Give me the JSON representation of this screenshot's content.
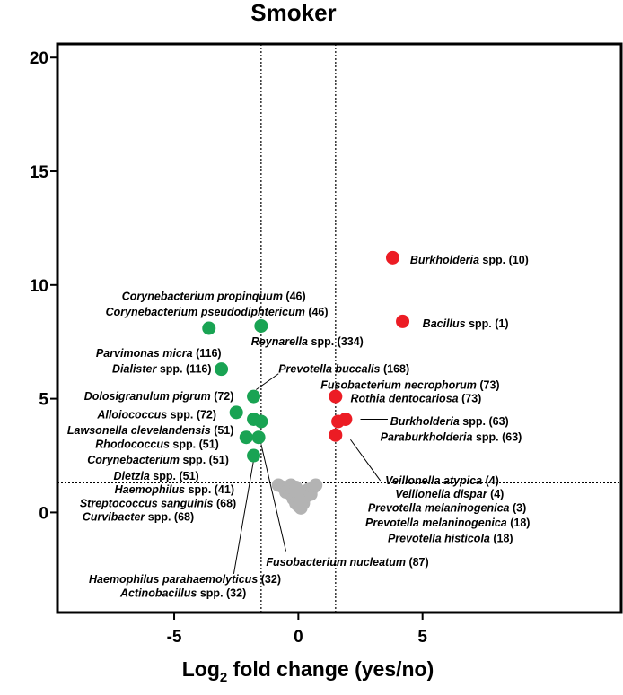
{
  "chart_data": {
    "type": "scatter",
    "title": "Smoker",
    "xlabel_prefix": "Log",
    "xlabel_sub": "2",
    "xlabel_rest": " fold change (yes/no)",
    "ylabel": "",
    "xlim": [
      -9.7,
      13.0
    ],
    "ylim": [
      -4.4,
      20.6
    ],
    "xticks": [
      -5,
      0,
      5
    ],
    "xtick_labels": [
      "-5",
      "0",
      "5"
    ],
    "yticks": [
      0,
      5,
      10,
      15,
      20
    ],
    "ytick_labels": [
      "0",
      "5",
      "10",
      "15",
      "20"
    ],
    "grid": false,
    "legend": "none",
    "thresholds": {
      "x": [
        -1.5,
        1.5
      ],
      "y": 1.3
    },
    "colors": {
      "enriched": "#ec1c24",
      "depleted": "#19a353",
      "ns": "#b3b3b3"
    },
    "series": [
      {
        "group": "enriched",
        "points": [
          {
            "x": 3.8,
            "y": 11.2,
            "label": "Burkholderia spp. (10)"
          },
          {
            "x": 4.2,
            "y": 8.4,
            "label": "Bacillus spp. (1)"
          },
          {
            "x": 1.5,
            "y": 5.1,
            "label": "Fusobacterium necrophorum (73)"
          },
          {
            "x": 1.6,
            "y": 4.0,
            "label": "Rothia dentocariosa (73)"
          },
          {
            "x": 1.9,
            "y": 4.1,
            "label": "Burkholderia spp. (63)"
          },
          {
            "x": 1.5,
            "y": 3.4,
            "label": "Paraburkholderia spp. (63)"
          }
        ]
      },
      {
        "group": "depleted",
        "points": [
          {
            "x": -3.6,
            "y": 8.1,
            "label": "Corynebacterium propinquum (46)"
          },
          {
            "x": -1.5,
            "y": 8.2,
            "label": "Reynarella spp. (334)"
          },
          {
            "x": -3.1,
            "y": 6.3,
            "label": "Dialister spp. (116)"
          },
          {
            "x": -1.8,
            "y": 5.1,
            "label": "Prevotella buccalis (168)"
          },
          {
            "x": -2.5,
            "y": 4.4,
            "label": "Alloiococcus spp. (72)"
          },
          {
            "x": -1.8,
            "y": 4.1,
            "label": "Dolosigranulum pigrum (72)"
          },
          {
            "x": -1.5,
            "y": 4.0,
            "label": "Lawsonella clevelandensis (51)"
          },
          {
            "x": -2.1,
            "y": 3.3,
            "label": "Rhodococcus spp. (51)"
          },
          {
            "x": -1.6,
            "y": 3.3,
            "label": "Fusobacterium nucleatum (87)"
          },
          {
            "x": -1.8,
            "y": 2.5,
            "label": "Haemophilus parahaemolyticus (32)"
          }
        ]
      },
      {
        "group": "ns",
        "points": [
          {
            "x": -0.8,
            "y": 1.2
          },
          {
            "x": -0.6,
            "y": 1.1
          },
          {
            "x": -0.5,
            "y": 0.9
          },
          {
            "x": -0.4,
            "y": 1.0
          },
          {
            "x": -0.3,
            "y": 0.8
          },
          {
            "x": -0.3,
            "y": 1.2
          },
          {
            "x": -0.2,
            "y": 0.6
          },
          {
            "x": -0.1,
            "y": 0.4
          },
          {
            "x": 0.0,
            "y": 0.3
          },
          {
            "x": 0.0,
            "y": 0.8
          },
          {
            "x": 0.1,
            "y": 0.5
          },
          {
            "x": 0.2,
            "y": 0.4
          },
          {
            "x": 0.2,
            "y": 0.9
          },
          {
            "x": 0.3,
            "y": 0.7
          },
          {
            "x": 0.4,
            "y": 1.0
          },
          {
            "x": 0.5,
            "y": 0.8
          },
          {
            "x": 0.6,
            "y": 1.1
          },
          {
            "x": 0.7,
            "y": 1.2
          },
          {
            "x": -0.1,
            "y": 1.1
          },
          {
            "x": 0.1,
            "y": 0.2
          }
        ]
      }
    ],
    "annotations": [
      {
        "italic": "Burkholderia",
        "rest": " spp. (10)",
        "tx": 4.5,
        "ty": 11.1,
        "anchor": "start"
      },
      {
        "italic": "Bacillus",
        "rest": " spp. (1)",
        "tx": 5.0,
        "ty": 8.3,
        "anchor": "start"
      },
      {
        "italic": "Fusobacterium necrophorum",
        "rest": " (73)",
        "tx": 0.9,
        "ty": 5.6,
        "anchor": "start"
      },
      {
        "italic": "Rothia dentocariosa",
        "rest": " (73)",
        "tx": 2.1,
        "ty": 5.0,
        "anchor": "start"
      },
      {
        "italic": "Burkholderia",
        "rest": " spp. (63)",
        "tx": 3.7,
        "ty": 4.0,
        "anchor": "start"
      },
      {
        "italic": "Paraburkholderia",
        "rest": " spp. (63)",
        "tx": 3.3,
        "ty": 3.3,
        "anchor": "start"
      },
      {
        "italic": "Veillonella atypica",
        "rest": " (4)",
        "tx": 3.5,
        "ty": 1.4,
        "anchor": "start"
      },
      {
        "italic": "Veillonella dispar",
        "rest": " (4)",
        "tx": 3.9,
        "ty": 0.8,
        "anchor": "start"
      },
      {
        "italic": "Prevotella melaninogenica",
        "rest": " (3)",
        "tx": 2.8,
        "ty": 0.2,
        "anchor": "start"
      },
      {
        "italic": "Prevotella melaninogenica",
        "rest": " (18)",
        "tx": 2.7,
        "ty": -0.45,
        "anchor": "start"
      },
      {
        "italic": "Prevotella histicola",
        "rest": " (18)",
        "tx": 3.6,
        "ty": -1.15,
        "anchor": "start"
      },
      {
        "italic": "Corynebacterium propinquum",
        "rest": " (46)",
        "tx": 0.3,
        "ty": 9.5,
        "anchor": "end"
      },
      {
        "italic": "Corynebacterium pseudodiphtericum",
        "rest": " (46)",
        "tx": 1.2,
        "ty": 8.8,
        "anchor": "end"
      },
      {
        "italic": "Reynarella",
        "rest": " spp. (334)",
        "tx": -1.9,
        "ty": 7.5,
        "anchor": "start"
      },
      {
        "italic": "Parvimonas micra",
        "rest": " (116)",
        "tx": -3.1,
        "ty": 7.0,
        "anchor": "end"
      },
      {
        "italic": "Dialister",
        "rest": " spp. (116)",
        "tx": -3.5,
        "ty": 6.3,
        "anchor": "end"
      },
      {
        "italic": "Prevotella buccalis",
        "rest": " (168)",
        "tx": -0.8,
        "ty": 6.3,
        "anchor": "start"
      },
      {
        "italic": "Dolosigranulum pigrum",
        "rest": " (72)",
        "tx": -2.6,
        "ty": 5.1,
        "anchor": "end"
      },
      {
        "italic": "Alloiococcus",
        "rest": " spp. (72)",
        "tx": -3.3,
        "ty": 4.3,
        "anchor": "end"
      },
      {
        "italic": "Lawsonella clevelandensis",
        "rest": " (51)",
        "tx": -2.6,
        "ty": 3.6,
        "anchor": "end"
      },
      {
        "italic": "Rhodococcus",
        "rest": " spp. (51)",
        "tx": -3.2,
        "ty": 3.0,
        "anchor": "end"
      },
      {
        "italic": "Corynebacterium",
        "rest": " spp. (51)",
        "tx": -2.8,
        "ty": 2.3,
        "anchor": "end"
      },
      {
        "italic": "Dietzia",
        "rest": " spp. (51)",
        "tx": -4.0,
        "ty": 1.6,
        "anchor": "end"
      },
      {
        "italic": "Haemophilus",
        "rest": " spp. (41)",
        "tx": -7.4,
        "ty": 1.0,
        "anchor": "start"
      },
      {
        "italic": "Streptococcus sanguinis",
        "rest": " (68)",
        "tx": -2.5,
        "ty": 0.4,
        "anchor": "end"
      },
      {
        "italic": "Curvibacter",
        "rest": " spp. (68)",
        "tx": -4.2,
        "ty": -0.2,
        "anchor": "end"
      },
      {
        "italic": "Fusobacterium nucleatum",
        "rest": " (87)",
        "tx": -1.3,
        "ty": -2.2,
        "anchor": "start"
      },
      {
        "italic": "Haemophilus parahaemolyticus",
        "rest": " (32)",
        "tx": -0.7,
        "ty": -2.95,
        "anchor": "end"
      },
      {
        "italic": "Actinobacillus",
        "rest": " spp. (32)",
        "tx": -2.1,
        "ty": -3.55,
        "anchor": "end"
      }
    ],
    "leader_lines": [
      {
        "x1": 2.5,
        "y1": 4.1,
        "x2": 3.6,
        "y2": 4.1
      },
      {
        "x1": 2.1,
        "y1": 3.2,
        "x2": 3.3,
        "y2": 1.4
      },
      {
        "x1": -1.8,
        "y1": 2.3,
        "x2": -2.6,
        "y2": -2.7
      },
      {
        "x1": -1.5,
        "y1": 3.0,
        "x2": -0.5,
        "y2": -1.7
      },
      {
        "x1": -1.7,
        "y1": 5.4,
        "x2": -0.8,
        "y2": 6.1
      }
    ]
  }
}
